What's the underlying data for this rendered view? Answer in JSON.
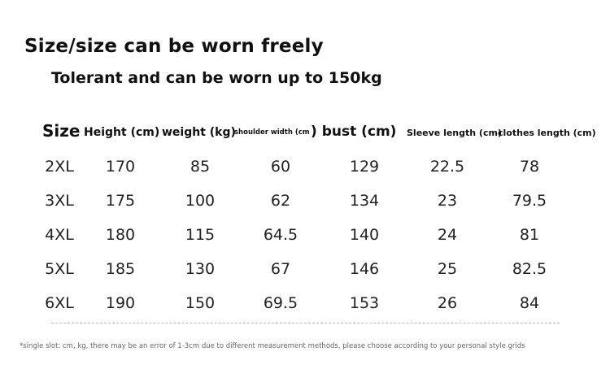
{
  "title": "Size/size can be worn freely",
  "subtitle": "Tolerant and can be worn up to 150kg",
  "table": {
    "headers": {
      "size": "Size",
      "height": "Height (cm)",
      "weight": "weight (kg)",
      "shoulder": "shoulder width (cm",
      "bust": ") bust (cm)",
      "sleeve": "Sleeve length (cm)",
      "clothes": "clothes length (cm)"
    },
    "rows": [
      [
        "2XL",
        "170",
        "85",
        "60",
        "129",
        "22.5",
        "78"
      ],
      [
        "3XL",
        "175",
        "100",
        "62",
        "134",
        "23",
        "79.5"
      ],
      [
        "4XL",
        "180",
        "115",
        "64.5",
        "140",
        "24",
        "81"
      ],
      [
        "5XL",
        "185",
        "130",
        "67",
        "146",
        "25",
        "82.5"
      ],
      [
        "6XL",
        "190",
        "150",
        "69.5",
        "153",
        "26",
        "84"
      ]
    ]
  },
  "footnote": "*single slot: cm, kg, there may be an error of 1-3cm due to different measurement methods, please choose according to your personal style grids"
}
